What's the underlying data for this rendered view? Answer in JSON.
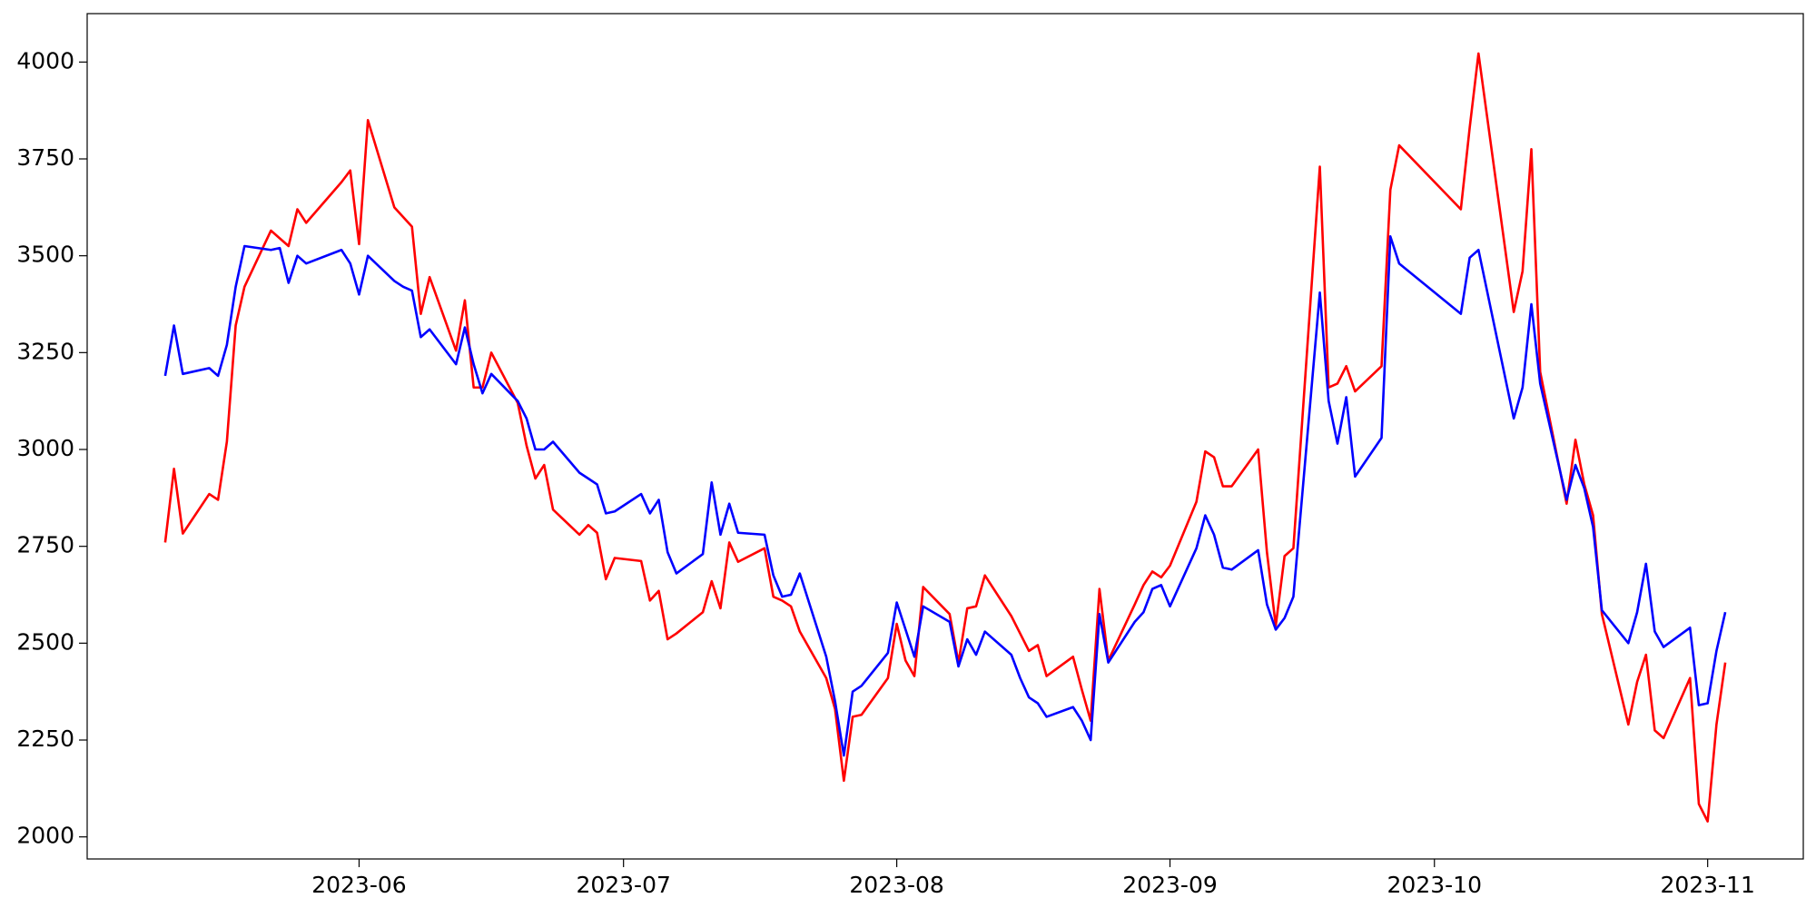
{
  "chart_data": {
    "type": "line",
    "x": [
      19487,
      19488,
      19489,
      19492,
      19493,
      19494,
      19495,
      19496,
      19499,
      19500,
      19501,
      19502,
      19503,
      19507,
      19508,
      19509,
      19510,
      19513,
      19514,
      19515,
      19516,
      19517,
      19520,
      19521,
      19522,
      19523,
      19524,
      19527,
      19528,
      19529,
      19530,
      19531,
      19534,
      19535,
      19536,
      19537,
      19538,
      19541,
      19542,
      19543,
      19544,
      19545,
      19548,
      19549,
      19550,
      19551,
      19552,
      19555,
      19556,
      19557,
      19558,
      19559,
      19562,
      19563,
      19564,
      19565,
      19566,
      19569,
      19570,
      19571,
      19572,
      19573,
      19576,
      19577,
      19578,
      19579,
      19580,
      19583,
      19584,
      19585,
      19586,
      19587,
      19590,
      19591,
      19592,
      19593,
      19594,
      19597,
      19598,
      19599,
      19600,
      19601,
      19604,
      19605,
      19606,
      19607,
      19608,
      19611,
      19612,
      19613,
      19614,
      19615,
      19618,
      19619,
      19620,
      19621,
      19622,
      19625,
      19626,
      19627,
      19634,
      19635,
      19636,
      19640,
      19641,
      19642,
      19643,
      19646,
      19647,
      19648,
      19649,
      19650,
      19653,
      19654,
      19655,
      19656,
      19657,
      19660,
      19661,
      19662,
      19663,
      19664
    ],
    "series": [
      {
        "color": "#ff0000",
        "values": [
          2760,
          2950,
          2783,
          2885,
          2870,
          3020,
          3320,
          3420,
          3565,
          3545,
          3525,
          3620,
          3585,
          3690,
          3720,
          3530,
          3850,
          3625,
          3600,
          3575,
          3350,
          3445,
          3255,
          3385,
          3160,
          3160,
          3250,
          3120,
          3010,
          2925,
          2960,
          2845,
          2780,
          2805,
          2785,
          2665,
          2720,
          2712,
          2610,
          2635,
          2510,
          2525,
          2580,
          2660,
          2590,
          2760,
          2710,
          2745,
          2620,
          2610,
          2595,
          2530,
          2410,
          2330,
          2145,
          2310,
          2315,
          2410,
          2550,
          2455,
          2415,
          2645,
          2575,
          2450,
          2590,
          2595,
          2675,
          2570,
          2525,
          2480,
          2495,
          2415,
          2465,
          2380,
          2300,
          2640,
          2455,
          2600,
          2650,
          2685,
          2670,
          2700,
          2865,
          2995,
          2980,
          2905,
          2905,
          3000,
          2735,
          2545,
          2725,
          2745,
          3730,
          3160,
          3170,
          3215,
          3150,
          3215,
          3670,
          3785,
          3620,
          3830,
          4022,
          3355,
          3460,
          3775,
          3200,
          2860,
          3025,
          2910,
          2830,
          2575,
          2290,
          2400,
          2470,
          2275,
          2255,
          2410,
          2085,
          2040,
          2290,
          2450
        ]
      },
      {
        "color": "#0000ff",
        "values": [
          3190,
          3320,
          3195,
          3210,
          3190,
          3270,
          3420,
          3525,
          3515,
          3520,
          3430,
          3500,
          3480,
          3515,
          3480,
          3400,
          3500,
          3435,
          3420,
          3410,
          3290,
          3310,
          3220,
          3315,
          3220,
          3145,
          3195,
          3125,
          3080,
          3000,
          3000,
          3020,
          2940,
          2925,
          2910,
          2835,
          2840,
          2885,
          2835,
          2870,
          2735,
          2680,
          2730,
          2915,
          2780,
          2860,
          2785,
          2780,
          2675,
          2620,
          2625,
          2680,
          2465,
          2350,
          2210,
          2375,
          2390,
          2475,
          2605,
          2535,
          2465,
          2595,
          2555,
          2440,
          2510,
          2470,
          2530,
          2470,
          2410,
          2360,
          2345,
          2310,
          2335,
          2300,
          2250,
          2575,
          2450,
          2555,
          2580,
          2640,
          2650,
          2595,
          2745,
          2830,
          2780,
          2695,
          2690,
          2740,
          2600,
          2535,
          2565,
          2620,
          3405,
          3125,
          3015,
          3135,
          2930,
          3030,
          3550,
          3480,
          3350,
          3495,
          3515,
          3080,
          3160,
          3375,
          3170,
          2870,
          2960,
          2900,
          2800,
          2585,
          2500,
          2580,
          2705,
          2530,
          2490,
          2540,
          2340,
          2345,
          2480,
          2580
        ]
      }
    ],
    "xlim": [
      19478.15,
      19672.85
    ],
    "xticks": [
      {
        "value": 19509,
        "label": "2023-06"
      },
      {
        "value": 19539,
        "label": "2023-07"
      },
      {
        "value": 19570,
        "label": "2023-08"
      },
      {
        "value": 19601,
        "label": "2023-09"
      },
      {
        "value": 19631,
        "label": "2023-10"
      },
      {
        "value": 19662,
        "label": "2023-11"
      }
    ],
    "ylim": [
      1943,
      4125
    ],
    "yticks": [
      2000,
      2250,
      2500,
      2750,
      3000,
      3250,
      3500,
      3750,
      4000
    ]
  }
}
